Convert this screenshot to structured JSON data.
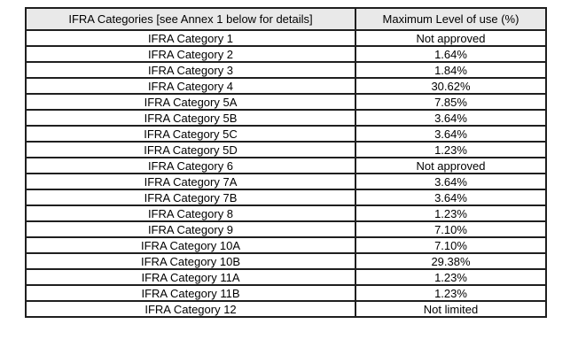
{
  "table": {
    "headers": {
      "categories": "IFRA Categories [see Annex 1 below for details]",
      "max_level": "Maximum Level of use (%)"
    },
    "rows": [
      {
        "category": "IFRA Category 1",
        "max_level": "Not approved"
      },
      {
        "category": "IFRA Category 2",
        "max_level": "1.64%"
      },
      {
        "category": "IFRA Category 3",
        "max_level": "1.84%"
      },
      {
        "category": "IFRA Category 4",
        "max_level": "30.62%"
      },
      {
        "category": "IFRA Category 5A",
        "max_level": "7.85%"
      },
      {
        "category": "IFRA Category 5B",
        "max_level": "3.64%"
      },
      {
        "category": "IFRA Category 5C",
        "max_level": "3.64%"
      },
      {
        "category": "IFRA Category 5D",
        "max_level": "1.23%"
      },
      {
        "category": "IFRA Category 6",
        "max_level": "Not approved"
      },
      {
        "category": "IFRA Category 7A",
        "max_level": "3.64%"
      },
      {
        "category": "IFRA Category 7B",
        "max_level": "3.64%"
      },
      {
        "category": "IFRA Category 8",
        "max_level": "1.23%"
      },
      {
        "category": "IFRA Category 9",
        "max_level": "7.10%"
      },
      {
        "category": "IFRA Category 10A",
        "max_level": "7.10%"
      },
      {
        "category": "IFRA Category 10B",
        "max_level": "29.38%"
      },
      {
        "category": "IFRA Category 11A",
        "max_level": "1.23%"
      },
      {
        "category": "IFRA Category 11B",
        "max_level": "1.23%"
      },
      {
        "category": "IFRA Category 12",
        "max_level": "Not limited"
      }
    ]
  },
  "colors": {
    "header_bg": "#e9e9e9",
    "border": "#1f1f1f",
    "text": "#000000",
    "page_bg": "#ffffff"
  }
}
